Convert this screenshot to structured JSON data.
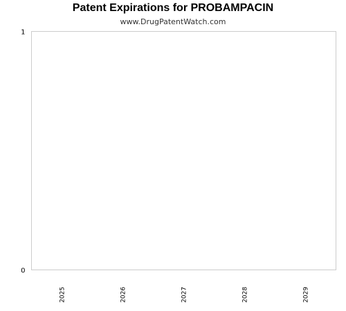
{
  "chart_data": {
    "type": "bar",
    "title": "Patent Expirations for PROBAMPACIN",
    "subtitle": "www.DrugPatentWatch.com",
    "xlabel": "",
    "ylabel": "",
    "categories": [
      "2025",
      "2026",
      "2027",
      "2028",
      "2029"
    ],
    "values": [
      0,
      0,
      0,
      0,
      0
    ],
    "ylim": [
      0,
      1
    ],
    "yticks": [
      "0",
      "1"
    ],
    "grid": false,
    "legend": "none",
    "colors": {
      "frame": "#cccccc",
      "axis": "#cccccc",
      "text": "#000000",
      "bar": "#4a7ebb"
    }
  }
}
